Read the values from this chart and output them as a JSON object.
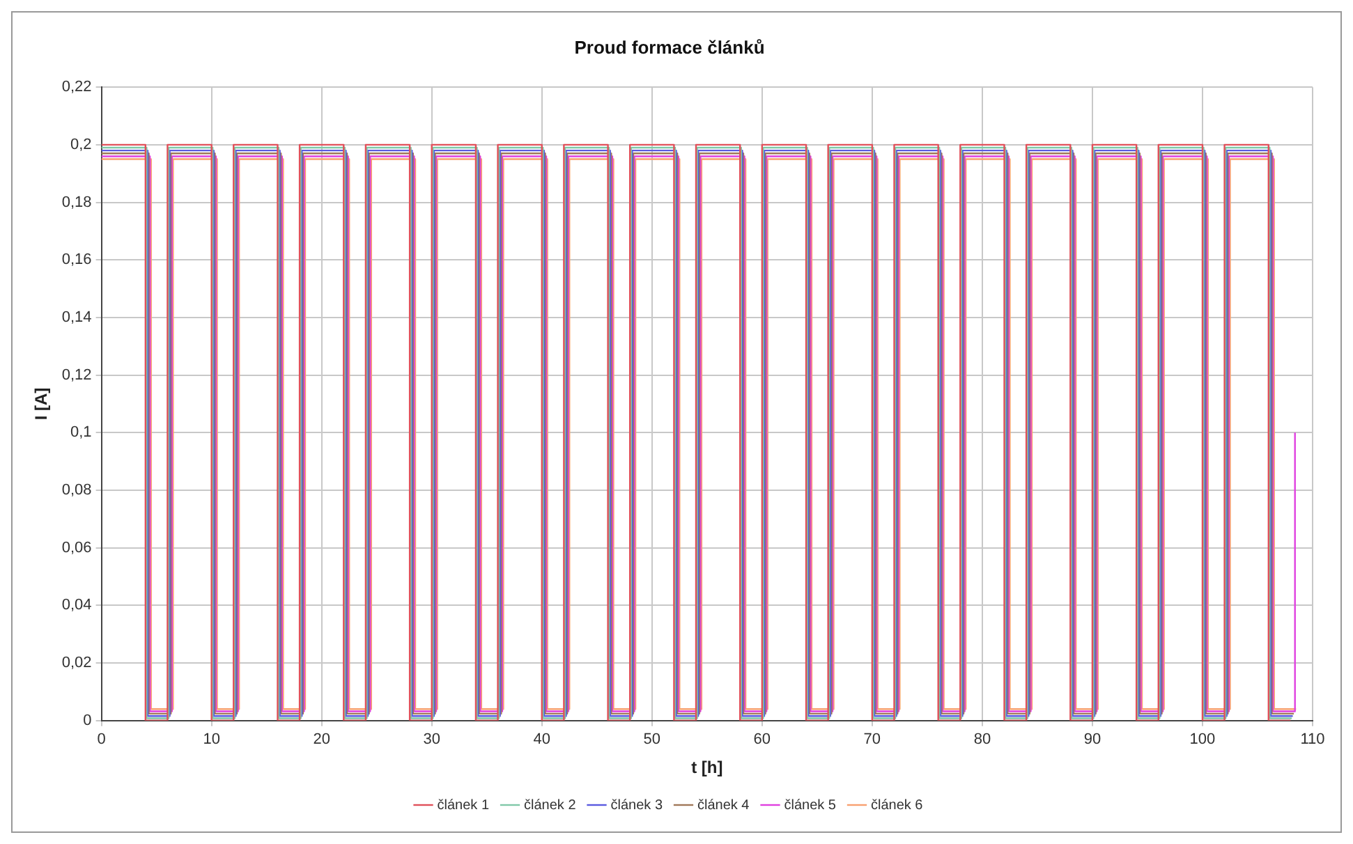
{
  "chart_data": {
    "type": "line",
    "title": "Proud formace článků",
    "xlabel": "t [h]",
    "ylabel": "I [A]",
    "series": [
      {
        "name": "článek 1",
        "color": "#e0505a",
        "x": [
          0,
          4,
          4,
          6,
          6,
          10,
          10,
          12,
          12,
          16,
          16,
          18,
          18,
          22,
          22,
          24,
          24,
          28,
          28,
          30,
          30,
          34,
          34,
          36,
          36,
          40,
          40,
          42,
          42,
          46,
          46,
          48,
          48,
          52,
          52,
          54,
          54,
          58,
          58,
          60,
          60,
          64,
          64,
          66,
          66,
          70,
          70,
          72,
          72,
          76,
          76,
          78,
          78,
          82,
          82,
          84,
          84,
          88,
          88,
          90,
          90,
          94,
          94,
          96,
          96,
          100,
          100,
          102,
          102,
          106,
          106,
          108
        ],
        "values": [
          0.2,
          0.2,
          0,
          0,
          0.2,
          0.2,
          0,
          0,
          0.2,
          0.2,
          0,
          0,
          0.2,
          0.2,
          0,
          0,
          0.2,
          0.2,
          0,
          0,
          0.2,
          0.2,
          0,
          0,
          0.2,
          0.2,
          0,
          0,
          0.2,
          0.2,
          0,
          0,
          0.2,
          0.2,
          0,
          0,
          0.2,
          0.2,
          0,
          0,
          0.2,
          0.2,
          0,
          0,
          0.2,
          0.2,
          0,
          0,
          0.2,
          0.2,
          0,
          0,
          0.2,
          0.2,
          0,
          0,
          0.2,
          0.2,
          0,
          0,
          0.2,
          0.2,
          0,
          0,
          0.2,
          0.2,
          0,
          0,
          0.2,
          0.2,
          0,
          0
        ]
      },
      {
        "name": "článek 2",
        "color": "#80c8a8",
        "x": [
          0,
          4.1,
          4.1,
          6.1,
          6.1,
          10.1,
          10.1,
          12.1,
          12.1,
          16.1,
          16.1,
          18.1,
          18.1,
          22.1,
          22.1,
          24.1,
          24.1,
          28.1,
          28.1,
          30.1,
          30.1,
          34.1,
          34.1,
          36.1,
          36.1,
          40.1,
          40.1,
          42.1,
          42.1,
          46.1,
          46.1,
          48.1,
          48.1,
          52.1,
          52.1,
          54.1,
          54.1,
          58.1,
          58.1,
          60.1,
          60.1,
          64.1,
          64.1,
          66.1,
          66.1,
          70.1,
          70.1,
          72.1,
          72.1,
          76.1,
          76.1,
          78.1,
          78.1,
          82.1,
          82.1,
          84.1,
          84.1,
          88.1,
          88.1,
          90.1,
          90.1,
          94.1,
          94.1,
          96.1,
          96.1,
          100.1,
          100.1,
          102.1,
          102.1,
          106.1,
          106.1,
          108.1
        ],
        "values": [
          0.199,
          0.199,
          0.0008,
          0.0008,
          0.199,
          0.199,
          0.0008,
          0.0008,
          0.199,
          0.199,
          0.0008,
          0.0008,
          0.199,
          0.199,
          0.0008,
          0.0008,
          0.199,
          0.199,
          0.0008,
          0.0008,
          0.199,
          0.199,
          0.0008,
          0.0008,
          0.199,
          0.199,
          0.0008,
          0.0008,
          0.199,
          0.199,
          0.0008,
          0.0008,
          0.199,
          0.199,
          0.0008,
          0.0008,
          0.199,
          0.199,
          0.0008,
          0.0008,
          0.199,
          0.199,
          0.0008,
          0.0008,
          0.199,
          0.199,
          0.0008,
          0.0008,
          0.199,
          0.199,
          0.0008,
          0.0008,
          0.199,
          0.199,
          0.0008,
          0.0008,
          0.199,
          0.199,
          0.0008,
          0.0008,
          0.199,
          0.199,
          0.0008,
          0.0008,
          0.199,
          0.199,
          0.0008,
          0.0008,
          0.199,
          0.199,
          0.0008,
          0.0008
        ]
      },
      {
        "name": "článek 3",
        "color": "#5a5ae0",
        "x": [
          0,
          4.2,
          4.2,
          6.2,
          6.2,
          10.2,
          10.2,
          12.2,
          12.2,
          16.2,
          16.2,
          18.2,
          18.2,
          22.2,
          22.2,
          24.2,
          24.2,
          28.2,
          28.2,
          30.2,
          30.2,
          34.2,
          34.2,
          36.2,
          36.2,
          40.2,
          40.2,
          42.2,
          42.2,
          46.2,
          46.2,
          48.2,
          48.2,
          52.2,
          52.2,
          54.2,
          54.2,
          58.2,
          58.2,
          60.2,
          60.2,
          64.2,
          64.2,
          66.2,
          66.2,
          70.2,
          70.2,
          72.2,
          72.2,
          76.2,
          76.2,
          78.2,
          78.2,
          82.2,
          82.2,
          84.2,
          84.2,
          88.2,
          88.2,
          90.2,
          90.2,
          94.2,
          94.2,
          96.2,
          96.2,
          100.2,
          100.2,
          102.2,
          102.2,
          106.2,
          106.2,
          108.2
        ],
        "values": [
          0.198,
          0.198,
          0.0016,
          0.0016,
          0.198,
          0.198,
          0.0016,
          0.0016,
          0.198,
          0.198,
          0.0016,
          0.0016,
          0.198,
          0.198,
          0.0016,
          0.0016,
          0.198,
          0.198,
          0.0016,
          0.0016,
          0.198,
          0.198,
          0.0016,
          0.0016,
          0.198,
          0.198,
          0.0016,
          0.0016,
          0.198,
          0.198,
          0.0016,
          0.0016,
          0.198,
          0.198,
          0.0016,
          0.0016,
          0.198,
          0.198,
          0.0016,
          0.0016,
          0.198,
          0.198,
          0.0016,
          0.0016,
          0.198,
          0.198,
          0.0016,
          0.0016,
          0.198,
          0.198,
          0.0016,
          0.0016,
          0.198,
          0.198,
          0.0016,
          0.0016,
          0.198,
          0.198,
          0.0016,
          0.0016,
          0.198,
          0.198,
          0.0016,
          0.0016,
          0.198,
          0.198,
          0.0016,
          0.0016,
          0.198,
          0.198,
          0.0016,
          0.0016
        ]
      },
      {
        "name": "článek 4",
        "color": "#a07858",
        "x": [
          0,
          4.3,
          4.3,
          6.3,
          6.3,
          10.3,
          10.3,
          12.3,
          12.3,
          16.3,
          16.3,
          18.3,
          18.3,
          22.3,
          22.3,
          24.3,
          24.3,
          28.3,
          28.3,
          30.3,
          30.3,
          34.3,
          34.3,
          36.3,
          36.3,
          40.3,
          40.3,
          42.3,
          42.3,
          46.3,
          46.3,
          48.3,
          48.3,
          52.3,
          52.3,
          54.3,
          54.3,
          58.3,
          58.3,
          60.3,
          60.3,
          64.3,
          64.3,
          66.3,
          66.3,
          70.3,
          70.3,
          72.3,
          72.3,
          76.3,
          76.3,
          78.3,
          78.3,
          82.3,
          82.3,
          84.3,
          84.3,
          88.3,
          88.3,
          90.3,
          90.3,
          94.3,
          94.3,
          96.3,
          96.3,
          100.3,
          100.3,
          102.3,
          102.3,
          106.3,
          106.3,
          108.3
        ],
        "values": [
          0.197,
          0.197,
          0.0024,
          0.0024,
          0.197,
          0.197,
          0.0024,
          0.0024,
          0.197,
          0.197,
          0.0024,
          0.0024,
          0.197,
          0.197,
          0.0024,
          0.0024,
          0.197,
          0.197,
          0.0024,
          0.0024,
          0.197,
          0.197,
          0.0024,
          0.0024,
          0.197,
          0.197,
          0.0024,
          0.0024,
          0.197,
          0.197,
          0.0024,
          0.0024,
          0.197,
          0.197,
          0.0024,
          0.0024,
          0.197,
          0.197,
          0.0024,
          0.0024,
          0.197,
          0.197,
          0.0024,
          0.0024,
          0.197,
          0.197,
          0.0024,
          0.0024,
          0.197,
          0.197,
          0.0024,
          0.0024,
          0.197,
          0.197,
          0.0024,
          0.0024,
          0.197,
          0.197,
          0.0024,
          0.0024,
          0.197,
          0.197,
          0.0024,
          0.0024,
          0.197,
          0.197,
          0.0024,
          0.0024,
          0.197,
          0.197,
          0.0024,
          0.0024
        ]
      },
      {
        "name": "článek 5",
        "color": "#e040e0",
        "x": [
          0,
          4.4,
          4.4,
          6.4,
          6.4,
          10.4,
          10.4,
          12.4,
          12.4,
          16.4,
          16.4,
          18.4,
          18.4,
          22.4,
          22.4,
          24.4,
          24.4,
          28.4,
          28.4,
          30.4,
          30.4,
          34.4,
          34.4,
          36.4,
          36.4,
          40.4,
          40.4,
          42.4,
          42.4,
          46.4,
          46.4,
          48.4,
          48.4,
          52.4,
          52.4,
          54.4,
          54.4,
          58.4,
          58.4,
          60.4,
          60.4,
          64.4,
          64.4,
          66.4,
          66.4,
          70.4,
          70.4,
          72.4,
          72.4,
          76.4,
          76.4,
          78.4,
          78.4,
          82.4,
          82.4,
          84.4,
          84.4,
          88.4,
          88.4,
          90.4,
          90.4,
          94.4,
          94.4,
          96.4,
          96.4,
          100.4,
          100.4,
          102.4,
          102.4,
          106.4,
          106.4,
          108.4,
          108.4
        ],
        "values": [
          0.196,
          0.196,
          0.0032,
          0.0032,
          0.196,
          0.196,
          0.0032,
          0.0032,
          0.196,
          0.196,
          0.0032,
          0.0032,
          0.196,
          0.196,
          0.0032,
          0.0032,
          0.196,
          0.196,
          0.0032,
          0.0032,
          0.196,
          0.196,
          0.0032,
          0.0032,
          0.196,
          0.196,
          0.0032,
          0.0032,
          0.196,
          0.196,
          0.0032,
          0.0032,
          0.196,
          0.196,
          0.0032,
          0.0032,
          0.196,
          0.196,
          0.0032,
          0.0032,
          0.196,
          0.196,
          0.0032,
          0.0032,
          0.196,
          0.196,
          0.0032,
          0.0032,
          0.196,
          0.196,
          0.0032,
          0.0032,
          0.196,
          0.196,
          0.0032,
          0.0032,
          0.196,
          0.196,
          0.0032,
          0.0032,
          0.196,
          0.196,
          0.0032,
          0.0032,
          0.196,
          0.196,
          0.0032,
          0.0032,
          0.196,
          0.196,
          0.0032,
          0.0032,
          0.1
        ]
      },
      {
        "name": "článek 6",
        "color": "#f8a070",
        "x": [
          0,
          4.5,
          4.5,
          6.5,
          6.5,
          10.5,
          10.5,
          12.5,
          12.5,
          16.5,
          16.5,
          18.5,
          18.5,
          22.5,
          22.5,
          24.5,
          24.5,
          28.5,
          28.5,
          30.5,
          30.5,
          34.5,
          34.5,
          36.5,
          36.5,
          40.5,
          40.5,
          42.5,
          42.5,
          46.5,
          46.5,
          48.5,
          48.5,
          52.5,
          52.5,
          54.5,
          54.5,
          58.5,
          58.5,
          60.5,
          60.5,
          64.5,
          64.5,
          66.5,
          66.5,
          70.5,
          70.5,
          72.5,
          72.5,
          76.5,
          76.5,
          78.5,
          78.5,
          82.5,
          82.5,
          84.5,
          84.5,
          88.5,
          88.5,
          90.5,
          90.5,
          94.5,
          94.5,
          96.5,
          96.5,
          100.5,
          100.5,
          102.5,
          102.5,
          106.5,
          106.5,
          108.5
        ],
        "values": [
          0.195,
          0.195,
          0.004,
          0.004,
          0.195,
          0.195,
          0.004,
          0.004,
          0.195,
          0.195,
          0.004,
          0.004,
          0.195,
          0.195,
          0.004,
          0.004,
          0.195,
          0.195,
          0.004,
          0.004,
          0.195,
          0.195,
          0.004,
          0.004,
          0.195,
          0.195,
          0.004,
          0.004,
          0.195,
          0.195,
          0.004,
          0.004,
          0.195,
          0.195,
          0.004,
          0.004,
          0.195,
          0.195,
          0.004,
          0.004,
          0.195,
          0.195,
          0.004,
          0.004,
          0.195,
          0.195,
          0.004,
          0.004,
          0.195,
          0.195,
          0.004,
          0.004,
          0.195,
          0.195,
          0.004,
          0.004,
          0.195,
          0.195,
          0.004,
          0.004,
          0.195,
          0.195,
          0.004,
          0.004,
          0.195,
          0.195,
          0.004,
          0.004,
          0.195,
          0.195,
          0.004,
          0.004
        ]
      }
    ],
    "xlim": [
      0,
      110
    ],
    "xticks": [
      0,
      10,
      20,
      30,
      40,
      50,
      60,
      70,
      80,
      90,
      100,
      110
    ],
    "ylim": [
      0,
      0.22
    ],
    "yticks": [
      0,
      {
        "value": 0.02,
        "label": "0,02"
      },
      {
        "value": 0.04,
        "label": "0,04"
      },
      {
        "value": 0.06,
        "label": "0,06"
      },
      {
        "value": 0.08,
        "label": "0,08"
      },
      {
        "value": 0.1,
        "label": "0,1"
      },
      {
        "value": 0.12,
        "label": "0,12"
      },
      {
        "value": 0.14,
        "label": "0,14"
      },
      {
        "value": 0.16,
        "label": "0,16"
      },
      {
        "value": 0.18,
        "label": "0,18"
      },
      {
        "value": 0.2,
        "label": "0,2"
      },
      {
        "value": 0.22,
        "label": "0,22"
      }
    ],
    "grid": true,
    "legend": "bottom",
    "marker": "none",
    "line_style": "solid"
  }
}
